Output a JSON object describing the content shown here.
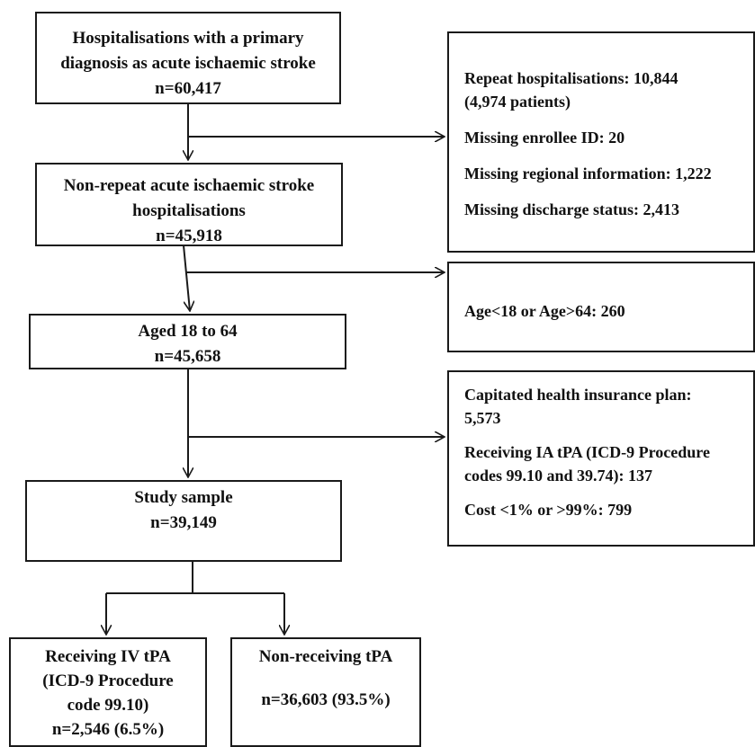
{
  "flowchart": {
    "box_initial": {
      "lines": [
        "Hospitalisations with a primary",
        "diagnosis as acute ischaemic stroke",
        "n=60,417"
      ]
    },
    "box_nonrepeat": {
      "lines": [
        "Non-repeat acute ischaemic stroke",
        "hospitalisations",
        "n=45,918"
      ]
    },
    "box_aged": {
      "lines": [
        "Aged 18 to 64",
        "n=45,658"
      ]
    },
    "box_study": {
      "lines": [
        "Study sample",
        "n=39,149"
      ]
    },
    "box_ivtpa": {
      "lines": [
        "Receiving IV tPA",
        "(ICD-9 Procedure",
        "code 99.10)",
        "n=2,546 (6.5%)"
      ]
    },
    "box_nontpa": {
      "lines": [
        "Non-receiving tPA",
        "n=36,603 (93.5%)"
      ]
    },
    "exclusion_1": {
      "items": [
        "Repeat hospitalisations: 10,844",
        "(4,974 patients)",
        "Missing enrollee ID: 20",
        "Missing regional information: 1,222",
        "Missing discharge status: 2,413"
      ]
    },
    "exclusion_2": {
      "items": [
        "Age<18 or Age>64: 260"
      ]
    },
    "exclusion_3": {
      "items": [
        "Capitated health insurance plan:",
        "5,573",
        "Receiving IA tPA (ICD-9 Procedure",
        "codes 99.10 and 39.74): 137",
        "Cost <1% or >99%: 799"
      ]
    }
  }
}
